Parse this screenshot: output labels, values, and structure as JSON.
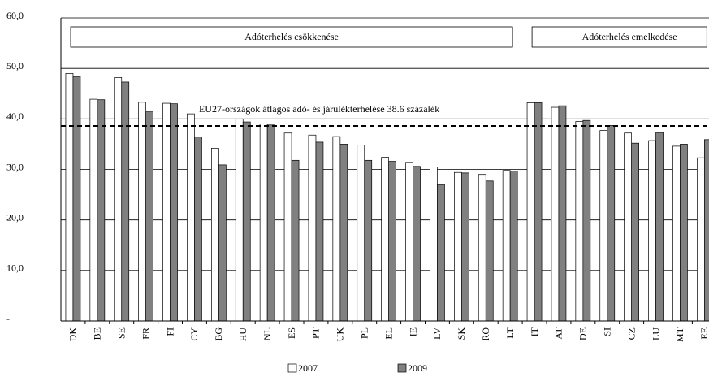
{
  "chart_data": {
    "type": "bar",
    "categories": [
      "DK",
      "BE",
      "SE",
      "FR",
      "FI",
      "CY",
      "BG",
      "HU",
      "NL",
      "ES",
      "PT",
      "UK",
      "PL",
      "EL",
      "IE",
      "LV",
      "SK",
      "RO",
      "LT",
      "IT",
      "AT",
      "DE",
      "SI",
      "CZ",
      "LU",
      "MT",
      "EE"
    ],
    "series": [
      {
        "name": "2007",
        "color": "#ffffff",
        "values": [
          49.0,
          43.9,
          48.2,
          43.3,
          43.1,
          41.0,
          34.2,
          40.0,
          39.0,
          37.2,
          36.8,
          36.5,
          34.8,
          32.4,
          31.4,
          30.5,
          29.4,
          29.0,
          29.8,
          43.2,
          42.3,
          39.5,
          37.7,
          37.2,
          35.7,
          34.6,
          32.3
        ]
      },
      {
        "name": "2009",
        "color": "#808080",
        "values": [
          48.4,
          43.8,
          47.3,
          41.5,
          43.0,
          36.4,
          30.9,
          39.4,
          38.8,
          31.8,
          35.4,
          35.0,
          31.8,
          31.6,
          30.6,
          27.0,
          29.3,
          27.7,
          29.7,
          43.2,
          42.6,
          39.7,
          38.7,
          35.2,
          37.3,
          35.0,
          35.9
        ]
      }
    ],
    "ylim": [
      0,
      60
    ],
    "yticks": [
      {
        "value": 0,
        "label": "-"
      },
      {
        "value": 10,
        "label": "10,0"
      },
      {
        "value": 20,
        "label": "20,0"
      },
      {
        "value": 30,
        "label": "30,0"
      },
      {
        "value": 40,
        "label": "40,0"
      },
      {
        "value": 50,
        "label": "50,0"
      },
      {
        "value": 60,
        "label": "60,0"
      }
    ],
    "grid": true,
    "average": {
      "value": 38.6,
      "label": "EU27-országok átlagos adó- és járulékterhelése 38.6 százalék"
    },
    "sections": [
      {
        "label": "Adóterhelés csökkenése"
      },
      {
        "label": "Adóterhelés emelkedése"
      }
    ],
    "legend": "bottom"
  }
}
